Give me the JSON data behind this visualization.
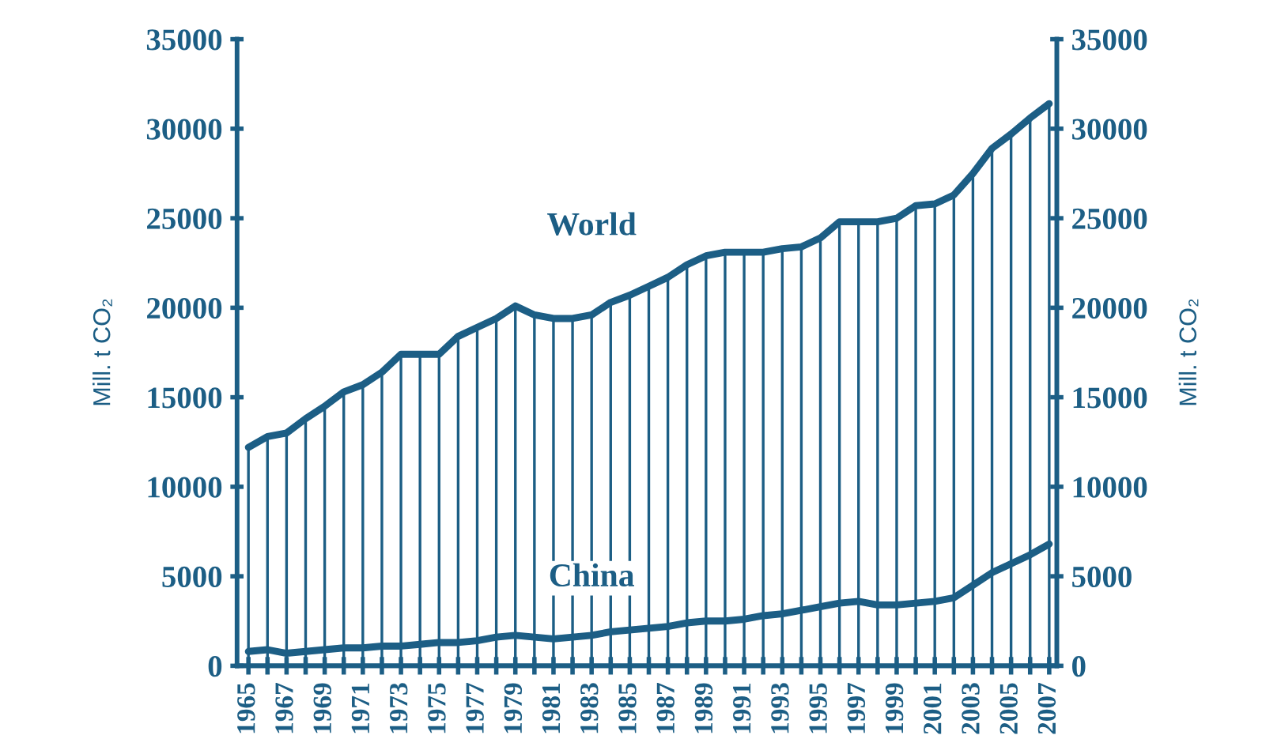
{
  "chart_data": {
    "type": "line",
    "x": [
      1965,
      1966,
      1967,
      1968,
      1969,
      1970,
      1971,
      1972,
      1973,
      1974,
      1975,
      1976,
      1977,
      1978,
      1979,
      1980,
      1981,
      1982,
      1983,
      1984,
      1985,
      1986,
      1987,
      1988,
      1989,
      1990,
      1991,
      1992,
      1993,
      1994,
      1995,
      1996,
      1997,
      1998,
      1999,
      2000,
      2001,
      2002,
      2003,
      2004,
      2005,
      2006,
      2007
    ],
    "series": [
      {
        "type": "bar",
        "color": "#1c5e85",
        "values": [
          12200,
          12800,
          13000,
          13800,
          14500,
          15300,
          15700,
          16400,
          17400,
          17400,
          17400,
          18400,
          18900,
          19400,
          20100,
          19600,
          19400,
          19400,
          19600,
          20300,
          20700,
          21200,
          21700,
          22400,
          22900,
          23100,
          23100,
          23100,
          23300,
          23400,
          23900,
          24800,
          24800,
          24800,
          25000,
          25700,
          25800,
          26300,
          27500,
          28900,
          29700,
          30600,
          31400
        ]
      },
      {
        "name": "World",
        "color": "#1c5e85",
        "values": [
          12200,
          12800,
          13000,
          13800,
          14500,
          15300,
          15700,
          16400,
          17400,
          17400,
          17400,
          18400,
          18900,
          19400,
          20100,
          19600,
          19400,
          19400,
          19600,
          20300,
          20700,
          21200,
          21700,
          22400,
          22900,
          23100,
          23100,
          23100,
          23300,
          23400,
          23900,
          24800,
          24800,
          24800,
          25000,
          25700,
          25800,
          26300,
          27500,
          28900,
          29700,
          30600,
          31400
        ]
      },
      {
        "name": "China",
        "color": "#1c5e85",
        "values": [
          800,
          900,
          700,
          800,
          900,
          1000,
          1000,
          1100,
          1100,
          1200,
          1300,
          1300,
          1400,
          1600,
          1700,
          1600,
          1500,
          1600,
          1700,
          1900,
          2000,
          2100,
          2200,
          2400,
          2500,
          2500,
          2600,
          2800,
          2900,
          3100,
          3300,
          3500,
          3600,
          3400,
          3400,
          3500,
          3600,
          3800,
          4500,
          5200,
          5700,
          6200,
          6800
        ]
      }
    ],
    "ylabel": "Mill. t CO₂",
    "y2label": "Mill. t CO₂",
    "xlim": [
      1964.4,
      2007.4
    ],
    "xticks": [
      1965,
      {
        "value": 1966,
        "label": null
      },
      1967,
      {
        "value": 1968,
        "label": null
      },
      1969,
      {
        "value": 1970,
        "label": null
      },
      1971,
      {
        "value": 1972,
        "label": null
      },
      1973,
      {
        "value": 1974,
        "label": null
      },
      1975,
      {
        "value": 1976,
        "label": null
      },
      1977,
      {
        "value": 1978,
        "label": null
      },
      1979,
      {
        "value": 1980,
        "label": null
      },
      1981,
      {
        "value": 1982,
        "label": null
      },
      1983,
      {
        "value": 1984,
        "label": null
      },
      1985,
      {
        "value": 1986,
        "label": null
      },
      1987,
      {
        "value": 1988,
        "label": null
      },
      1989,
      {
        "value": 1990,
        "label": null
      },
      1991,
      {
        "value": 1992,
        "label": null
      },
      1993,
      {
        "value": 1994,
        "label": null
      },
      1995,
      {
        "value": 1996,
        "label": null
      },
      1997,
      {
        "value": 1998,
        "label": null
      },
      1999,
      {
        "value": 2000,
        "label": null
      },
      2001,
      {
        "value": 2002,
        "label": null
      },
      2003,
      {
        "value": 2004,
        "label": null
      },
      2005,
      {
        "value": 2006,
        "label": null
      },
      2007
    ],
    "ylim": [
      0,
      35000
    ],
    "yticks": [
      0,
      5000,
      10000,
      15000,
      20000,
      25000,
      30000,
      35000
    ],
    "y2lim": [
      0,
      35000
    ],
    "y2ticks": [
      0,
      5000,
      10000,
      15000,
      20000,
      25000,
      30000,
      35000
    ],
    "grid": false,
    "legend": false,
    "marker": "none",
    "line_style": "solid"
  }
}
